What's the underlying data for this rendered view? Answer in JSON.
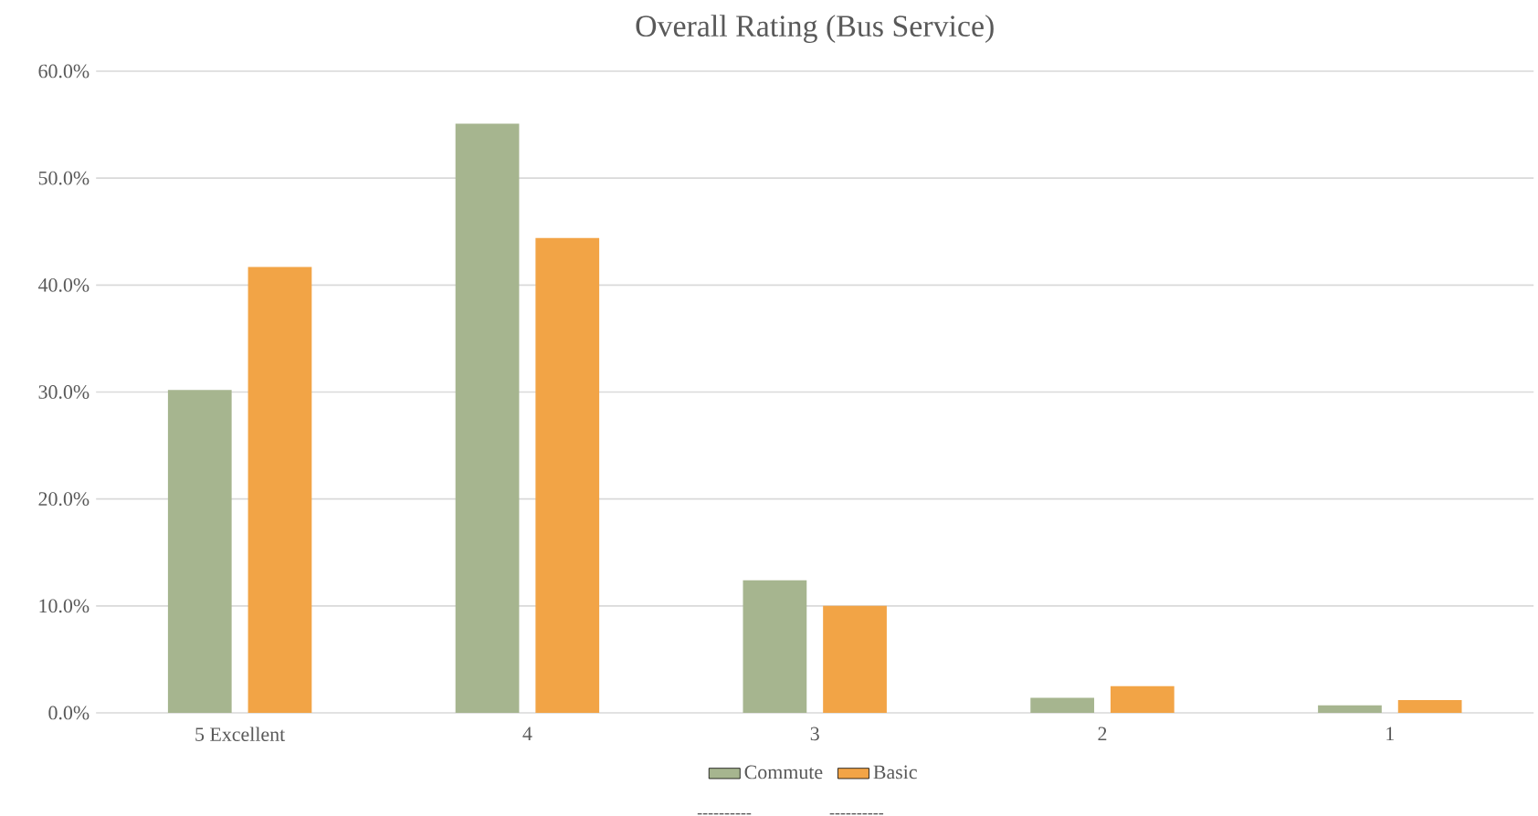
{
  "chart_data": {
    "type": "bar",
    "title": "Overall Rating (Bus Service)",
    "categories": [
      "5 Excellent",
      "4",
      "3",
      "2",
      "1"
    ],
    "series": [
      {
        "name": "Commute",
        "color": "#a6b58f",
        "values": [
          30.2,
          55.1,
          12.4,
          1.4,
          0.7
        ]
      },
      {
        "name": "Basic",
        "color": "#f2a446",
        "values": [
          41.7,
          44.4,
          10.0,
          2.5,
          1.2
        ]
      }
    ],
    "ylim": [
      0,
      60
    ],
    "yticks": [
      {
        "value": 0,
        "label": "0.0%"
      },
      {
        "value": 10,
        "label": "10.0%"
      },
      {
        "value": 20,
        "label": "20.0%"
      },
      {
        "value": 30,
        "label": "30.0%"
      },
      {
        "value": 40,
        "label": "40.0%"
      },
      {
        "value": 50,
        "label": "50.0%"
      },
      {
        "value": 60,
        "label": "60.0%"
      }
    ],
    "grid": "y",
    "legend": "bottom",
    "annotations": [
      "----------",
      "----------"
    ]
  }
}
